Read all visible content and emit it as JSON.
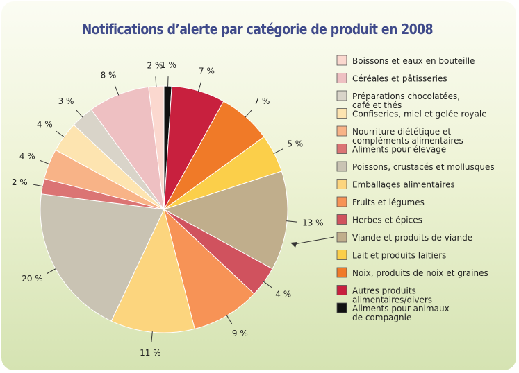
{
  "chart_data": {
    "type": "pie",
    "title": "Notifications d’alerte par catégorie de produit en 2008",
    "slices": [
      {
        "name": "Aliments pour animaux de compagnie",
        "legend_lines": [
          "Aliments pour animaux",
          "de compagnie"
        ],
        "value": 1,
        "label": "1 %",
        "color": "#111111"
      },
      {
        "name": "Autres produits alimentaires/divers",
        "legend_lines": [
          "Autres produits",
          "alimentaires/divers"
        ],
        "value": 7,
        "label": "7 %",
        "color": "#c8203e"
      },
      {
        "name": "Noix, produits de noix et graines",
        "legend_lines": [
          "Noix, produits de noix et graines"
        ],
        "value": 7,
        "label": "7 %",
        "color": "#f07a28"
      },
      {
        "name": "Lait et produits laitiers",
        "legend_lines": [
          "Lait et produits laitiers"
        ],
        "value": 5,
        "label": "5 %",
        "color": "#fbcf4a"
      },
      {
        "name": "Viande et produits de viande",
        "legend_lines": [
          "Viande et produits de viande"
        ],
        "value": 13,
        "label": "13 %",
        "color": "#c0ae8c"
      },
      {
        "name": "Herbes et épices",
        "legend_lines": [
          "Herbes et épices"
        ],
        "value": 4,
        "label": "4 %",
        "color": "#d0525e"
      },
      {
        "name": "Fruits et légumes",
        "legend_lines": [
          "Fruits et légumes"
        ],
        "value": 9,
        "label": "9 %",
        "color": "#f79356"
      },
      {
        "name": "Emballages alimentaires",
        "legend_lines": [
          "Emballages alimentaires"
        ],
        "value": 11,
        "label": "11 %",
        "color": "#fcd57e"
      },
      {
        "name": "Poissons, crustacés et mollusques",
        "legend_lines": [
          "Poissons, crustacés et mollusques"
        ],
        "value": 20,
        "label": "20 %",
        "color": "#c9c3b3"
      },
      {
        "name": "Aliments pour élevage",
        "legend_lines": [
          "Aliments pour élevage"
        ],
        "value": 2,
        "label": "2 %",
        "color": "#db7474"
      },
      {
        "name": "Nourriture diététique et compléments alimentaires",
        "legend_lines": [
          "Nourriture diététique et",
          "compléments alimentaires"
        ],
        "value": 4,
        "label": "4 %",
        "color": "#f8b387"
      },
      {
        "name": "Confiseries, miel et gelée royale",
        "legend_lines": [
          "Confiseries, miel et gelée royale"
        ],
        "value": 4,
        "label": "4 %",
        "color": "#fde4b0"
      },
      {
        "name": "Préparations chocolatées, café et thés",
        "legend_lines": [
          "Préparations chocolatées,",
          "café et thés"
        ],
        "value": 3,
        "label": "3 %",
        "color": "#d9d4c9"
      },
      {
        "name": "Céréales et pâtisseries",
        "legend_lines": [
          "Céréales et pâtisseries"
        ],
        "value": 8,
        "label": "8 %",
        "color": "#eec0c2"
      },
      {
        "name": "Boissons et eaux en bouteille",
        "legend_lines": [
          "Boissons et eaux en bouteille"
        ],
        "value": 2,
        "label": "2 %",
        "color": "#fbd8cf"
      }
    ],
    "legend_order": [
      14,
      13,
      12,
      11,
      10,
      9,
      8,
      7,
      6,
      5,
      4,
      3,
      2,
      1,
      0
    ],
    "legend_placement": "right"
  }
}
